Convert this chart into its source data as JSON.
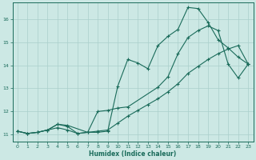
{
  "xlabel": "Humidex (Indice chaleur)",
  "ylabel": "",
  "bg_color": "#cce8e4",
  "grid_color": "#aacfcb",
  "line_color": "#1a6b5a",
  "xlim": [
    -0.5,
    23.5
  ],
  "ylim": [
    10.7,
    16.7
  ],
  "xticks": [
    0,
    1,
    2,
    3,
    4,
    5,
    6,
    7,
    8,
    9,
    10,
    11,
    12,
    13,
    14,
    15,
    16,
    17,
    18,
    19,
    20,
    21,
    22,
    23
  ],
  "yticks": [
    11,
    12,
    13,
    14,
    15,
    16
  ],
  "line1_x": [
    0,
    1,
    2,
    3,
    4,
    5,
    6,
    7,
    8,
    9,
    10,
    11,
    12,
    13,
    14,
    15,
    16,
    17,
    18,
    19,
    20,
    21,
    22,
    23
  ],
  "line1_y": [
    11.15,
    11.05,
    11.1,
    11.2,
    11.45,
    11.35,
    11.05,
    11.1,
    11.1,
    11.15,
    13.1,
    14.25,
    14.1,
    13.85,
    14.85,
    15.25,
    15.55,
    16.5,
    16.45,
    15.85,
    15.1,
    14.75,
    14.35,
    14.05
  ],
  "line2_x": [
    0,
    1,
    2,
    3,
    4,
    5,
    7,
    8,
    9,
    10,
    11,
    14,
    15,
    16,
    17,
    18,
    19,
    20,
    21,
    22,
    23
  ],
  "line2_y": [
    11.15,
    11.05,
    11.1,
    11.2,
    11.45,
    11.4,
    11.1,
    12.0,
    12.05,
    12.15,
    12.2,
    13.05,
    13.5,
    14.5,
    15.2,
    15.5,
    15.7,
    15.5,
    14.05,
    13.45,
    14.05
  ],
  "line3_x": [
    0,
    1,
    2,
    3,
    4,
    5,
    6,
    7,
    8,
    9,
    10,
    11,
    12,
    13,
    14,
    15,
    16,
    17,
    18,
    19,
    20,
    21,
    22,
    23
  ],
  "line3_y": [
    11.15,
    11.05,
    11.1,
    11.2,
    11.3,
    11.2,
    11.05,
    11.1,
    11.15,
    11.2,
    11.5,
    11.8,
    12.05,
    12.3,
    12.55,
    12.85,
    13.2,
    13.65,
    13.95,
    14.25,
    14.5,
    14.7,
    14.85,
    14.05
  ]
}
